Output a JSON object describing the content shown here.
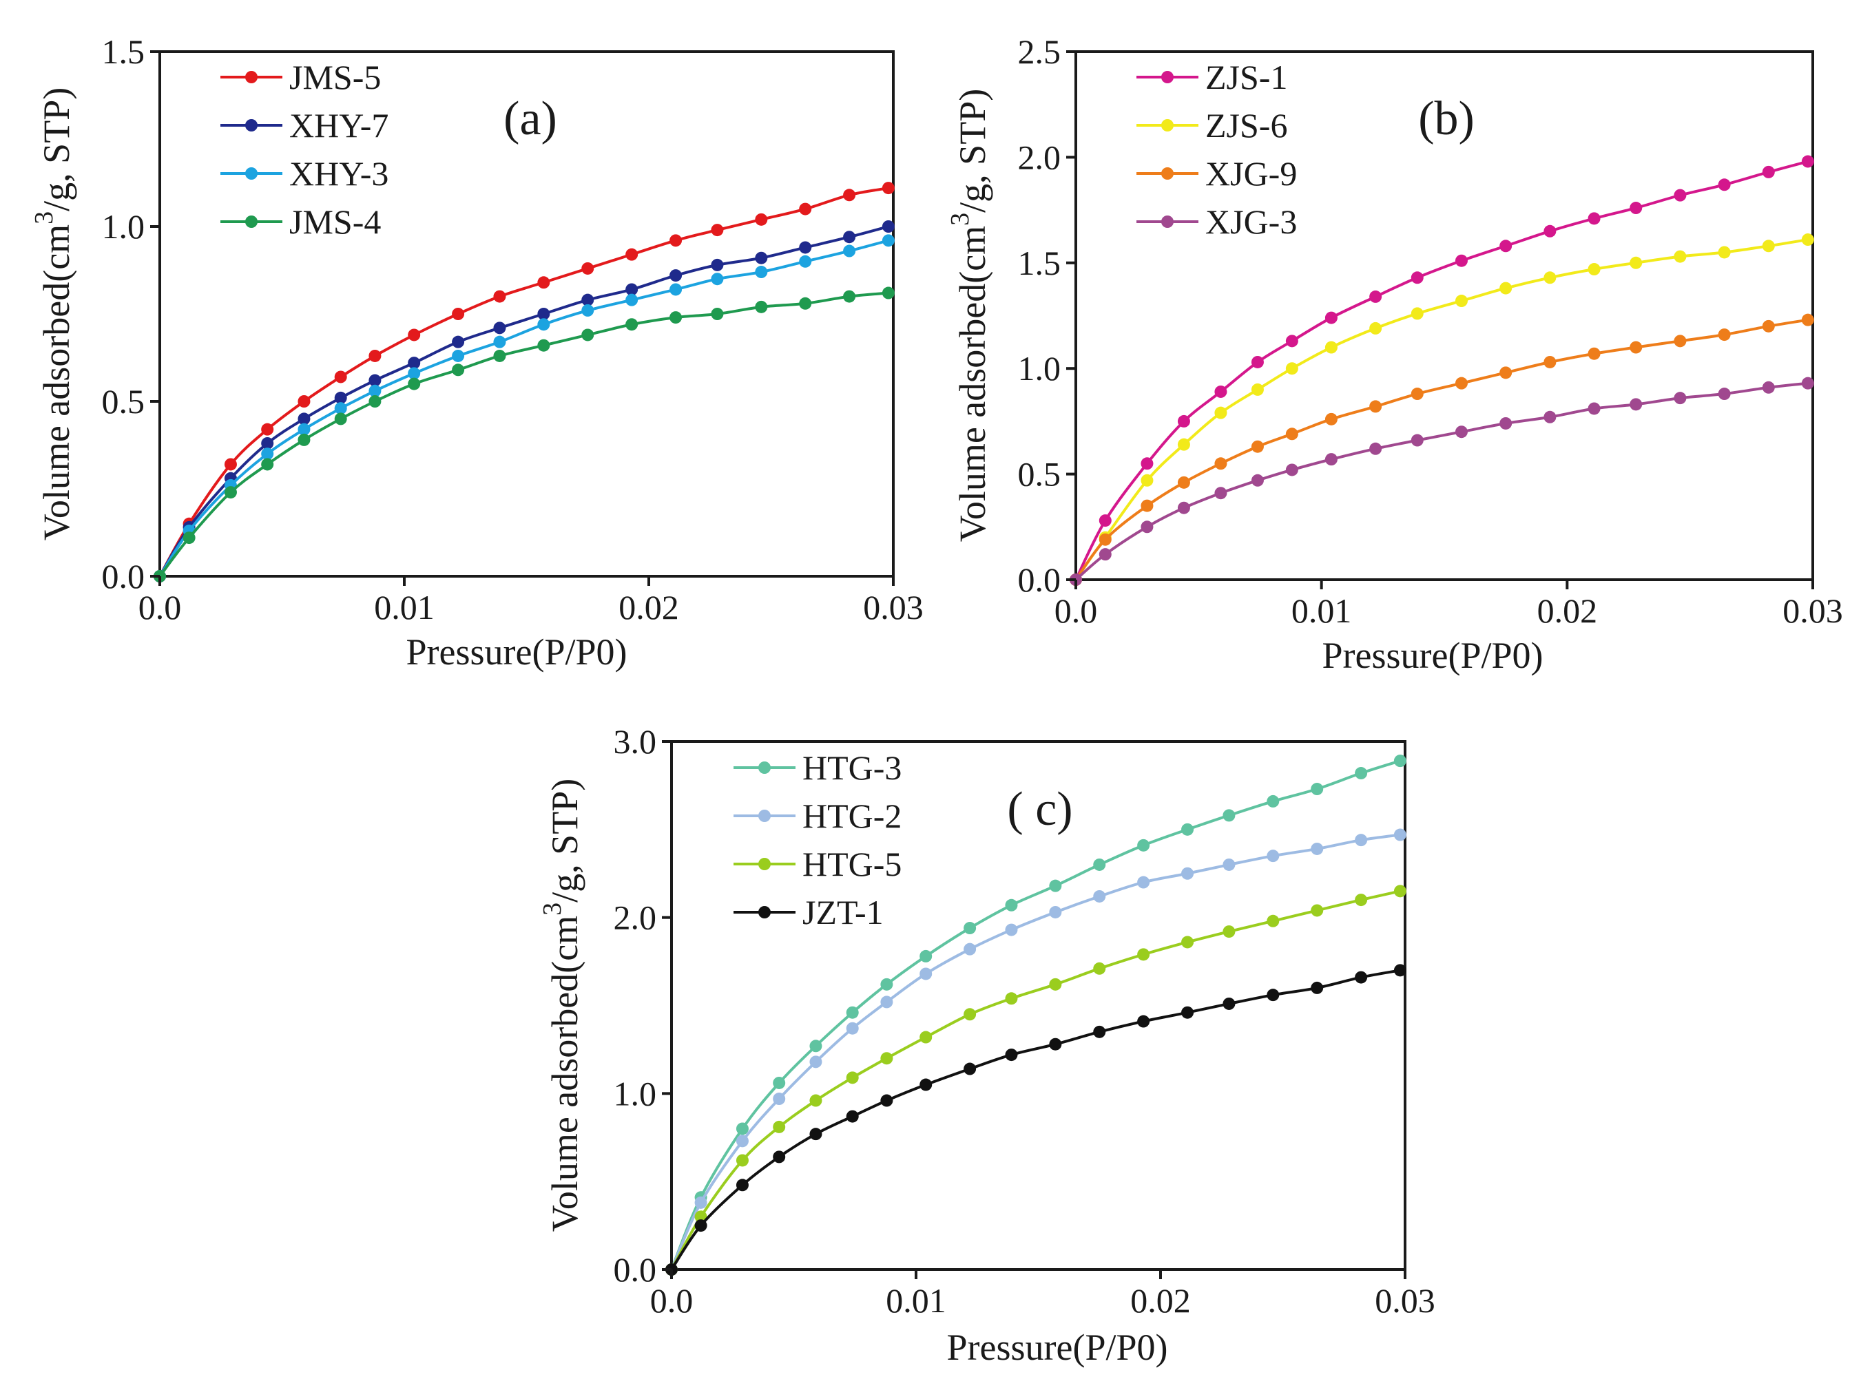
{
  "chart_data": [
    {
      "type": "line",
      "panel_label": "(a)",
      "xlabel": "Pressure(P/P0)",
      "ylabel_main": "Volume adsorbed(cm",
      "ylabel_sup": "3",
      "ylabel_tail": "/g, STP)",
      "xlim": [
        0.0,
        0.03
      ],
      "ylim": [
        0.0,
        1.5
      ],
      "x_ticks": [
        "0.0",
        "0.01",
        "0.02",
        "0.03"
      ],
      "y_ticks": [
        "0.0",
        "0.5",
        "1.0",
        "1.5"
      ],
      "legend_position": "top-left",
      "x": [
        0,
        0.0012,
        0.0029,
        0.0044,
        0.0059,
        0.0074,
        0.0088,
        0.0104,
        0.0122,
        0.0139,
        0.0157,
        0.0175,
        0.0193,
        0.0211,
        0.0228,
        0.0246,
        0.0264,
        0.0282,
        0.0298
      ],
      "series": [
        {
          "name": "JMS-5",
          "color": "#e31a1c",
          "values": [
            0,
            0.15,
            0.32,
            0.42,
            0.5,
            0.57,
            0.63,
            0.69,
            0.75,
            0.8,
            0.84,
            0.88,
            0.92,
            0.96,
            0.99,
            1.02,
            1.05,
            1.09,
            1.11
          ]
        },
        {
          "name": "XHY-7",
          "color": "#1f2a8c",
          "values": [
            0,
            0.14,
            0.28,
            0.38,
            0.45,
            0.51,
            0.56,
            0.61,
            0.67,
            0.71,
            0.75,
            0.79,
            0.82,
            0.86,
            0.89,
            0.91,
            0.94,
            0.97,
            1.0
          ]
        },
        {
          "name": "XHY-3",
          "color": "#1ca3e0",
          "values": [
            0,
            0.13,
            0.26,
            0.35,
            0.42,
            0.48,
            0.53,
            0.58,
            0.63,
            0.67,
            0.72,
            0.76,
            0.79,
            0.82,
            0.85,
            0.87,
            0.9,
            0.93,
            0.96
          ]
        },
        {
          "name": "JMS-4",
          "color": "#1f9a4f",
          "values": [
            0,
            0.11,
            0.24,
            0.32,
            0.39,
            0.45,
            0.5,
            0.55,
            0.59,
            0.63,
            0.66,
            0.69,
            0.72,
            0.74,
            0.75,
            0.77,
            0.78,
            0.8,
            0.81
          ]
        }
      ]
    },
    {
      "type": "line",
      "panel_label": "(b)",
      "xlabel": "Pressure(P/P0)",
      "ylabel_main": "Volume adsorbed(cm",
      "ylabel_sup": "3",
      "ylabel_tail": "/g, STP)",
      "xlim": [
        0.0,
        0.03
      ],
      "ylim": [
        0.0,
        2.5
      ],
      "x_ticks": [
        "0.0",
        "0.01",
        "0.02",
        "0.03"
      ],
      "y_ticks": [
        "0.0",
        "0.5",
        "1.0",
        "1.5",
        "2.0",
        "2.5"
      ],
      "legend_position": "top-left",
      "x": [
        0,
        0.0012,
        0.0029,
        0.0044,
        0.0059,
        0.0074,
        0.0088,
        0.0104,
        0.0122,
        0.0139,
        0.0157,
        0.0175,
        0.0193,
        0.0211,
        0.0228,
        0.0246,
        0.0264,
        0.0282,
        0.0298
      ],
      "series": [
        {
          "name": "ZJS-1",
          "color": "#d4178c",
          "values": [
            0,
            0.28,
            0.55,
            0.75,
            0.89,
            1.03,
            1.13,
            1.24,
            1.34,
            1.43,
            1.51,
            1.58,
            1.65,
            1.71,
            1.76,
            1.82,
            1.87,
            1.93,
            1.98
          ]
        },
        {
          "name": "ZJS-6",
          "color": "#f2ea1a",
          "values": [
            0,
            0.2,
            0.47,
            0.64,
            0.79,
            0.9,
            1.0,
            1.1,
            1.19,
            1.26,
            1.32,
            1.38,
            1.43,
            1.47,
            1.5,
            1.53,
            1.55,
            1.58,
            1.61
          ]
        },
        {
          "name": "XJG-9",
          "color": "#ee7d1a",
          "values": [
            0,
            0.19,
            0.35,
            0.46,
            0.55,
            0.63,
            0.69,
            0.76,
            0.82,
            0.88,
            0.93,
            0.98,
            1.03,
            1.07,
            1.1,
            1.13,
            1.16,
            1.2,
            1.23
          ]
        },
        {
          "name": "XJG-3",
          "color": "#a0488f",
          "values": [
            0,
            0.12,
            0.25,
            0.34,
            0.41,
            0.47,
            0.52,
            0.57,
            0.62,
            0.66,
            0.7,
            0.74,
            0.77,
            0.81,
            0.83,
            0.86,
            0.88,
            0.91,
            0.93
          ]
        }
      ]
    },
    {
      "type": "line",
      "panel_label": "( c)",
      "xlabel": "Pressure(P/P0)",
      "ylabel_main": "Volume adsorbed(cm",
      "ylabel_sup": "3",
      "ylabel_tail": "/g, STP)",
      "xlim": [
        0.0,
        0.03
      ],
      "ylim": [
        0.0,
        3.0
      ],
      "x_ticks": [
        "0.0",
        "0.01",
        "0.02",
        "0.03"
      ],
      "y_ticks": [
        "0.0",
        "1.0",
        "2.0",
        "3.0"
      ],
      "legend_position": "top-left",
      "x": [
        0,
        0.0012,
        0.0029,
        0.0044,
        0.0059,
        0.0074,
        0.0088,
        0.0104,
        0.0122,
        0.0139,
        0.0157,
        0.0175,
        0.0193,
        0.0211,
        0.0228,
        0.0246,
        0.0264,
        0.0282,
        0.0298
      ],
      "series": [
        {
          "name": "HTG-3",
          "color": "#5fc3a0",
          "values": [
            0,
            0.41,
            0.8,
            1.06,
            1.27,
            1.46,
            1.62,
            1.78,
            1.94,
            2.07,
            2.18,
            2.3,
            2.41,
            2.5,
            2.58,
            2.66,
            2.73,
            2.82,
            2.89
          ]
        },
        {
          "name": "HTG-2",
          "color": "#9dbbe3",
          "values": [
            0,
            0.38,
            0.73,
            0.97,
            1.18,
            1.37,
            1.52,
            1.68,
            1.82,
            1.93,
            2.03,
            2.12,
            2.2,
            2.25,
            2.3,
            2.35,
            2.39,
            2.44,
            2.47
          ]
        },
        {
          "name": "HTG-5",
          "color": "#9acd1e",
          "values": [
            0,
            0.3,
            0.62,
            0.81,
            0.96,
            1.09,
            1.2,
            1.32,
            1.45,
            1.54,
            1.62,
            1.71,
            1.79,
            1.86,
            1.92,
            1.98,
            2.04,
            2.1,
            2.15
          ]
        },
        {
          "name": "JZT-1",
          "color": "#111111",
          "values": [
            0,
            0.25,
            0.48,
            0.64,
            0.77,
            0.87,
            0.96,
            1.05,
            1.14,
            1.22,
            1.28,
            1.35,
            1.41,
            1.46,
            1.51,
            1.56,
            1.6,
            1.66,
            1.7
          ]
        }
      ]
    }
  ]
}
